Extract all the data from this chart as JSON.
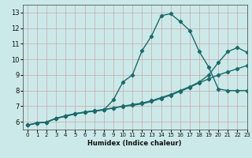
{
  "xlabel": "Humidex (Indice chaleur)",
  "bg_color": "#cce9e9",
  "line_color": "#1a6b6b",
  "grid_color_v": "#c8a8a8",
  "grid_color_h": "#c8a8a8",
  "xlim": [
    -0.5,
    23
  ],
  "ylim": [
    5.5,
    13.5
  ],
  "xticks": [
    0,
    1,
    2,
    3,
    4,
    5,
    6,
    7,
    8,
    9,
    10,
    11,
    12,
    13,
    14,
    15,
    16,
    17,
    18,
    19,
    20,
    21,
    22,
    23
  ],
  "yticks": [
    6,
    7,
    8,
    9,
    10,
    11,
    12,
    13
  ],
  "line1_x": [
    0,
    1,
    2,
    3,
    4,
    5,
    6,
    7,
    8,
    9,
    10,
    11,
    12,
    13,
    14,
    15,
    16,
    17,
    18,
    19,
    20,
    21,
    22,
    23
  ],
  "line1_y": [
    5.78,
    5.92,
    5.98,
    6.22,
    6.35,
    6.5,
    6.6,
    6.68,
    6.75,
    7.4,
    8.55,
    9.0,
    10.55,
    11.5,
    12.8,
    12.92,
    12.42,
    11.85,
    10.5,
    9.5,
    8.1,
    8.0,
    8.0,
    8.0
  ],
  "line2_x": [
    0,
    1,
    2,
    3,
    4,
    5,
    6,
    7,
    8,
    9,
    10,
    11,
    12,
    13,
    14,
    15,
    16,
    17,
    18,
    19,
    20,
    21,
    22,
    23
  ],
  "line2_y": [
    5.78,
    5.92,
    5.98,
    6.22,
    6.38,
    6.52,
    6.62,
    6.7,
    6.78,
    6.88,
    7.0,
    7.1,
    7.2,
    7.35,
    7.55,
    7.75,
    8.0,
    8.25,
    8.55,
    9.0,
    9.8,
    10.5,
    10.75,
    10.45
  ],
  "line3_x": [
    0,
    1,
    2,
    3,
    4,
    5,
    6,
    7,
    8,
    9,
    10,
    11,
    12,
    13,
    14,
    15,
    16,
    17,
    18,
    19,
    20,
    21,
    22,
    23
  ],
  "line3_y": [
    5.78,
    5.92,
    5.98,
    6.22,
    6.38,
    6.52,
    6.62,
    6.7,
    6.78,
    6.88,
    6.98,
    7.05,
    7.15,
    7.3,
    7.5,
    7.7,
    7.95,
    8.2,
    8.5,
    8.75,
    9.0,
    9.2,
    9.4,
    9.6
  ],
  "marker": "D",
  "marker_size": 2.2,
  "line_width": 1.0,
  "xlabel_fontsize": 6,
  "tick_fontsize_x": 5,
  "tick_fontsize_y": 6
}
